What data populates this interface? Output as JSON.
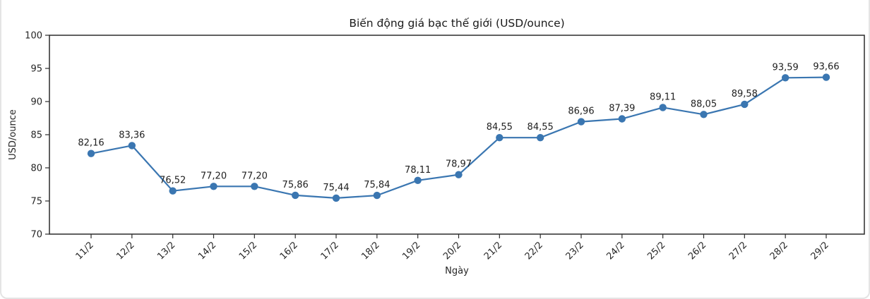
{
  "chart_data": {
    "type": "line",
    "title": "Biến động giá bạc thế giới (USD/ounce)",
    "xlabel": "Ngày",
    "ylabel": "USD/ounce",
    "categories": [
      "11/2",
      "12/2",
      "13/2",
      "14/2",
      "15/2",
      "16/2",
      "17/2",
      "18/2",
      "19/2",
      "20/2",
      "21/2",
      "22/2",
      "23/2",
      "24/2",
      "25/2",
      "26/2",
      "27/2",
      "28/2",
      "29/2"
    ],
    "values": [
      82.16,
      83.36,
      76.52,
      77.2,
      77.2,
      75.86,
      75.44,
      75.84,
      78.11,
      78.97,
      84.55,
      84.55,
      86.96,
      87.39,
      89.11,
      88.05,
      89.58,
      93.59,
      93.66
    ],
    "point_labels": [
      "82,16",
      "83,36",
      "76,52",
      "77,20",
      "77,20",
      "75,86",
      "75,44",
      "75,84",
      "78,11",
      "78,97",
      "84,55",
      "84,55",
      "86,96",
      "87,39",
      "89,11",
      "88,05",
      "89,58",
      "93,59",
      "93,66"
    ],
    "ylim": [
      70,
      100
    ],
    "yticks": [
      70,
      75,
      80,
      85,
      90,
      95,
      100
    ],
    "grid": false,
    "legend": "none",
    "line_color": "#3a76b1",
    "marker": "circle",
    "spine_color": "#2b2b2b",
    "tick_color": "#262626"
  }
}
